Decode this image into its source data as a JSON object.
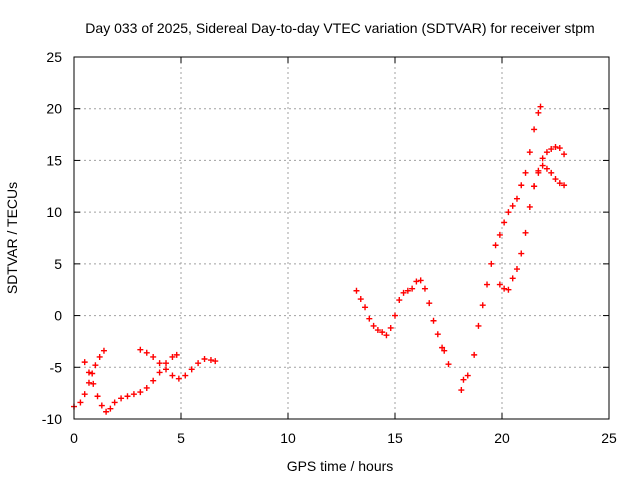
{
  "chart_data": {
    "type": "scatter",
    "title": "Day 033 of 2025, Sidereal Day-to-day VTEC variation (SDTVAR) for receiver stpm",
    "xlabel": "GPS time / hours",
    "ylabel": "SDTVAR / TECUs",
    "xlim": [
      0,
      25
    ],
    "ylim": [
      -10,
      25
    ],
    "xticks": [
      0,
      5,
      10,
      15,
      20,
      25
    ],
    "yticks": [
      -10,
      -5,
      0,
      5,
      10,
      15,
      20,
      25
    ],
    "grid": true,
    "marker": "+",
    "color": "#ff0000",
    "series": [
      {
        "points": [
          [
            0.0,
            -8.8
          ],
          [
            0.3,
            -8.4
          ],
          [
            0.5,
            -7.6
          ],
          [
            0.7,
            -6.5
          ],
          [
            0.85,
            -5.6
          ],
          [
            1.0,
            -4.8
          ],
          [
            1.2,
            -4.0
          ],
          [
            1.4,
            -3.4
          ],
          [
            0.5,
            -4.5
          ],
          [
            0.7,
            -5.5
          ],
          [
            0.9,
            -6.6
          ],
          [
            1.1,
            -7.8
          ],
          [
            1.3,
            -8.7
          ],
          [
            1.5,
            -9.3
          ],
          [
            1.7,
            -9.0
          ],
          [
            1.9,
            -8.4
          ],
          [
            2.2,
            -8.0
          ],
          [
            2.5,
            -7.8
          ],
          [
            2.8,
            -7.6
          ],
          [
            3.1,
            -7.4
          ],
          [
            3.4,
            -7.0
          ],
          [
            3.7,
            -6.3
          ],
          [
            4.0,
            -5.5
          ],
          [
            4.3,
            -4.6
          ],
          [
            4.6,
            -4.0
          ],
          [
            4.8,
            -3.8
          ],
          [
            3.1,
            -3.3
          ],
          [
            3.4,
            -3.6
          ],
          [
            3.7,
            -4.0
          ],
          [
            4.0,
            -4.6
          ],
          [
            4.3,
            -5.2
          ],
          [
            4.6,
            -5.8
          ],
          [
            4.9,
            -6.1
          ],
          [
            5.2,
            -5.8
          ],
          [
            5.5,
            -5.2
          ],
          [
            5.8,
            -4.6
          ],
          [
            6.1,
            -4.2
          ],
          [
            6.4,
            -4.3
          ],
          [
            6.6,
            -4.4
          ],
          [
            13.2,
            2.4
          ],
          [
            13.4,
            1.6
          ],
          [
            13.6,
            0.8
          ],
          [
            13.8,
            -0.3
          ],
          [
            14.0,
            -1.0
          ],
          [
            14.2,
            -1.4
          ],
          [
            14.4,
            -1.6
          ],
          [
            14.6,
            -1.9
          ],
          [
            14.8,
            -1.2
          ],
          [
            15.0,
            0.0
          ],
          [
            15.2,
            1.5
          ],
          [
            15.4,
            2.2
          ],
          [
            15.6,
            2.4
          ],
          [
            15.8,
            2.6
          ],
          [
            16.0,
            3.3
          ],
          [
            16.2,
            3.4
          ],
          [
            16.4,
            2.6
          ],
          [
            16.6,
            1.2
          ],
          [
            16.8,
            -0.5
          ],
          [
            17.0,
            -1.8
          ],
          [
            17.2,
            -3.1
          ],
          [
            17.3,
            -3.4
          ],
          [
            17.5,
            -4.7
          ],
          [
            18.1,
            -7.2
          ],
          [
            18.2,
            -6.2
          ],
          [
            18.4,
            -5.8
          ],
          [
            18.7,
            -3.8
          ],
          [
            18.9,
            -1.0
          ],
          [
            19.1,
            1.0
          ],
          [
            19.3,
            3.0
          ],
          [
            19.5,
            5.0
          ],
          [
            19.7,
            6.8
          ],
          [
            19.9,
            7.8
          ],
          [
            20.1,
            9.0
          ],
          [
            20.3,
            10.0
          ],
          [
            20.5,
            10.6
          ],
          [
            20.7,
            11.3
          ],
          [
            20.9,
            12.6
          ],
          [
            21.1,
            13.8
          ],
          [
            21.3,
            15.8
          ],
          [
            21.5,
            18.0
          ],
          [
            21.7,
            19.6
          ],
          [
            21.8,
            20.2
          ],
          [
            19.9,
            3.0
          ],
          [
            20.1,
            2.6
          ],
          [
            20.3,
            2.5
          ],
          [
            20.5,
            3.6
          ],
          [
            20.7,
            4.5
          ],
          [
            20.9,
            6.0
          ],
          [
            21.1,
            8.0
          ],
          [
            21.3,
            10.5
          ],
          [
            21.5,
            12.5
          ],
          [
            21.7,
            13.8
          ],
          [
            21.9,
            14.5
          ],
          [
            22.1,
            14.2
          ],
          [
            22.3,
            13.8
          ],
          [
            22.5,
            13.2
          ],
          [
            22.7,
            12.8
          ],
          [
            22.9,
            12.6
          ],
          [
            21.5,
            12.5
          ],
          [
            21.7,
            14.0
          ],
          [
            21.9,
            15.2
          ],
          [
            22.1,
            15.8
          ],
          [
            22.3,
            16.1
          ],
          [
            22.5,
            16.3
          ],
          [
            22.7,
            16.2
          ],
          [
            22.9,
            15.6
          ]
        ]
      }
    ]
  }
}
